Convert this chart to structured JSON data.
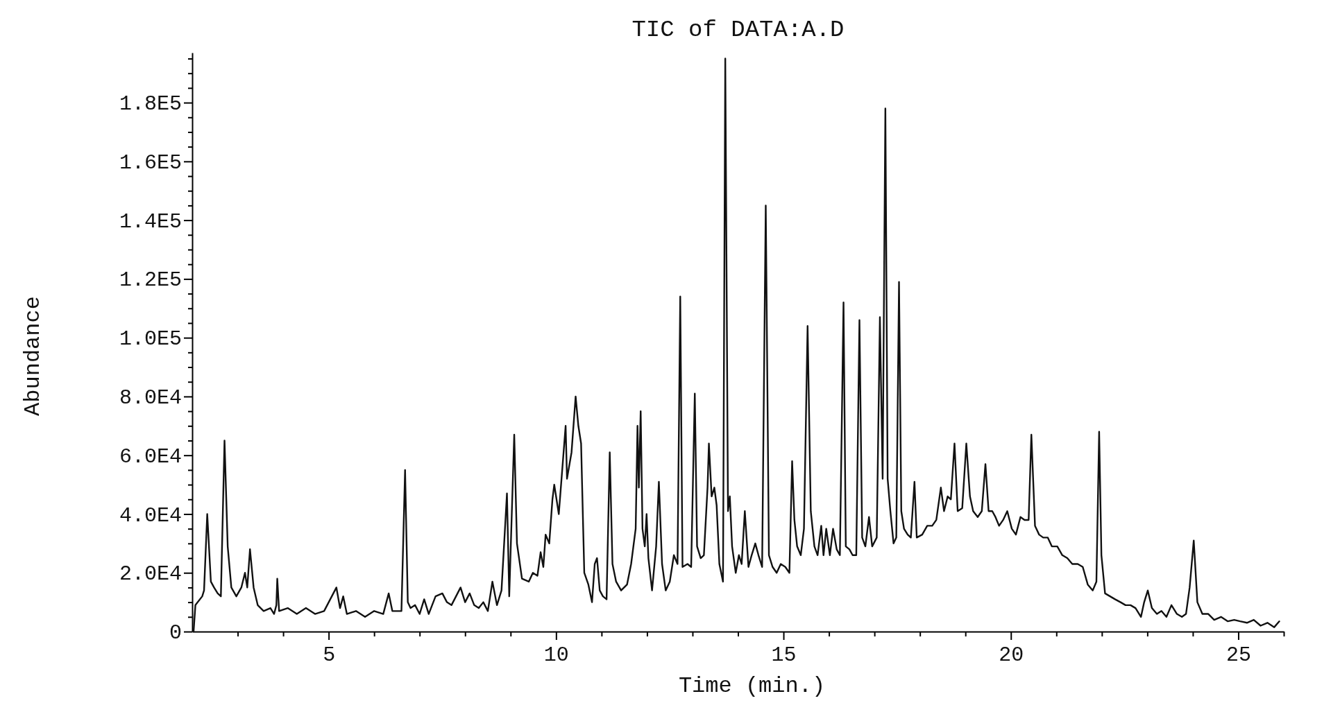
{
  "chart_data": {
    "type": "line",
    "title": "TIC of DATA:A.D",
    "xlabel": "Time (min.)",
    "ylabel": "Abundance",
    "color": "#111111",
    "xlim": [
      2,
      26
    ],
    "ylim": [
      0,
      197000
    ],
    "xticks": [
      {
        "value": 3,
        "label": null
      },
      {
        "value": 4,
        "label": null
      },
      5,
      {
        "value": 6,
        "label": null
      },
      {
        "value": 7,
        "label": null
      },
      {
        "value": 8,
        "label": null
      },
      {
        "value": 9,
        "label": null
      },
      10,
      {
        "value": 11,
        "label": null
      },
      {
        "value": 12,
        "label": null
      },
      {
        "value": 13,
        "label": null
      },
      {
        "value": 14,
        "label": null
      },
      15,
      {
        "value": 16,
        "label": null
      },
      {
        "value": 17,
        "label": null
      },
      {
        "value": 18,
        "label": null
      },
      {
        "value": 19,
        "label": null
      },
      20,
      {
        "value": 21,
        "label": null
      },
      {
        "value": 22,
        "label": null
      },
      {
        "value": 23,
        "label": null
      },
      {
        "value": 24,
        "label": null
      },
      25,
      {
        "value": 26,
        "label": null
      }
    ],
    "yticks": [
      0,
      {
        "value": 5000,
        "label": null
      },
      {
        "value": 10000,
        "label": null
      },
      {
        "value": 15000,
        "label": null
      },
      {
        "value": 20000,
        "label": "2.0E4"
      },
      {
        "value": 25000,
        "label": null
      },
      {
        "value": 30000,
        "label": null
      },
      {
        "value": 35000,
        "label": null
      },
      {
        "value": 40000,
        "label": "4.0E4"
      },
      {
        "value": 45000,
        "label": null
      },
      {
        "value": 50000,
        "label": null
      },
      {
        "value": 55000,
        "label": null
      },
      {
        "value": 60000,
        "label": "6.0E4"
      },
      {
        "value": 65000,
        "label": null
      },
      {
        "value": 70000,
        "label": null
      },
      {
        "value": 75000,
        "label": null
      },
      {
        "value": 80000,
        "label": "8.0E4"
      },
      {
        "value": 85000,
        "label": null
      },
      {
        "value": 90000,
        "label": null
      },
      {
        "value": 95000,
        "label": null
      },
      {
        "value": 100000,
        "label": "1.0E5"
      },
      {
        "value": 105000,
        "label": null
      },
      {
        "value": 110000,
        "label": null
      },
      {
        "value": 115000,
        "label": null
      },
      {
        "value": 120000,
        "label": "1.2E5"
      },
      {
        "value": 125000,
        "label": null
      },
      {
        "value": 130000,
        "label": null
      },
      {
        "value": 135000,
        "label": null
      },
      {
        "value": 140000,
        "label": "1.4E5"
      },
      {
        "value": 145000,
        "label": null
      },
      {
        "value": 150000,
        "label": null
      },
      {
        "value": 155000,
        "label": null
      },
      {
        "value": 160000,
        "label": "1.6E5"
      },
      {
        "value": 165000,
        "label": null
      },
      {
        "value": 170000,
        "label": null
      },
      {
        "value": 175000,
        "label": null
      },
      {
        "value": 180000,
        "label": "1.8E5"
      },
      {
        "value": 185000,
        "label": null
      },
      {
        "value": 190000,
        "label": null
      },
      {
        "value": 195000,
        "label": null
      }
    ],
    "x": [
      2.03,
      2.07,
      2.22,
      2.26,
      2.33,
      2.41,
      2.48,
      2.56,
      2.63,
      2.71,
      2.78,
      2.86,
      2.97,
      3.08,
      3.16,
      3.21,
      3.27,
      3.35,
      3.44,
      3.57,
      3.72,
      3.8,
      3.85,
      3.87,
      3.91,
      4.1,
      4.3,
      4.5,
      4.7,
      4.9,
      5.17,
      5.25,
      5.32,
      5.4,
      5.6,
      5.8,
      6.0,
      6.2,
      6.32,
      6.4,
      6.6,
      6.68,
      6.74,
      6.8,
      6.9,
      7.0,
      7.1,
      7.2,
      7.35,
      7.5,
      7.6,
      7.7,
      7.8,
      7.9,
      8.0,
      8.1,
      8.2,
      8.3,
      8.4,
      8.5,
      8.6,
      8.7,
      8.8,
      8.92,
      8.97,
      9.08,
      9.14,
      9.25,
      9.4,
      9.49,
      9.59,
      9.66,
      9.72,
      9.77,
      9.85,
      9.92,
      9.96,
      10.06,
      10.21,
      10.24,
      10.34,
      10.43,
      10.49,
      10.55,
      10.62,
      10.71,
      10.79,
      10.85,
      10.9,
      10.96,
      11.03,
      11.11,
      11.18,
      11.24,
      11.32,
      11.43,
      11.56,
      11.65,
      11.75,
      11.79,
      11.82,
      11.86,
      11.9,
      11.95,
      11.99,
      12.03,
      12.11,
      12.2,
      12.26,
      12.33,
      12.41,
      12.5,
      12.59,
      12.67,
      12.73,
      12.78,
      12.89,
      12.97,
      13.05,
      13.1,
      13.18,
      13.25,
      13.33,
      13.36,
      13.42,
      13.48,
      13.53,
      13.59,
      13.67,
      13.72,
      13.78,
      13.82,
      13.87,
      13.95,
      14.02,
      14.08,
      14.15,
      14.23,
      14.3,
      14.38,
      14.45,
      14.53,
      14.61,
      14.68,
      14.76,
      14.85,
      14.94,
      15.04,
      15.13,
      15.19,
      15.24,
      15.3,
      15.38,
      15.45,
      15.53,
      15.6,
      15.68,
      15.75,
      15.83,
      15.88,
      15.94,
      16.02,
      16.09,
      16.17,
      16.24,
      16.32,
      16.37,
      16.45,
      16.52,
      16.6,
      16.67,
      16.73,
      16.8,
      16.88,
      16.95,
      17.05,
      17.12,
      17.18,
      17.24,
      17.29,
      17.35,
      17.42,
      17.48,
      17.54,
      17.59,
      17.65,
      17.73,
      17.8,
      17.88,
      17.93,
      18.05,
      18.16,
      18.27,
      18.36,
      18.46,
      18.53,
      18.61,
      18.68,
      18.76,
      18.83,
      18.93,
      19.02,
      19.1,
      19.17,
      19.27,
      19.36,
      19.44,
      19.51,
      19.59,
      19.66,
      19.74,
      19.83,
      19.92,
      20.02,
      20.11,
      20.21,
      20.3,
      20.39,
      20.45,
      20.53,
      20.62,
      20.71,
      20.81,
      20.9,
      21.02,
      21.13,
      21.24,
      21.35,
      21.47,
      21.58,
      21.69,
      21.8,
      21.88,
      21.94,
      21.99,
      22.07,
      22.18,
      22.29,
      22.41,
      22.52,
      22.63,
      22.74,
      22.86,
      22.93,
      23.01,
      23.1,
      23.21,
      23.31,
      23.42,
      23.53,
      23.65,
      23.76,
      23.85,
      23.93,
      24.02,
      24.1,
      24.21,
      24.34,
      24.47,
      24.62,
      24.77,
      24.91,
      25.04,
      25.19,
      25.34,
      25.49,
      25.64,
      25.79,
      25.9
    ],
    "values": [
      0,
      9000,
      12000,
      14000,
      40000,
      17000,
      15000,
      13000,
      12000,
      65000,
      29000,
      15000,
      12000,
      15000,
      20000,
      15000,
      28000,
      15000,
      9000,
      7000,
      8000,
      6000,
      9000,
      18000,
      7000,
      8000,
      6000,
      8000,
      6000,
      7000,
      15000,
      8000,
      12000,
      6000,
      7000,
      5000,
      7000,
      6000,
      13000,
      7000,
      7000,
      55000,
      10000,
      8000,
      9000,
      6000,
      11000,
      6000,
      12000,
      13000,
      10000,
      9000,
      12000,
      15000,
      10000,
      13000,
      9000,
      8000,
      10000,
      7000,
      17000,
      9000,
      14000,
      47000,
      12000,
      67000,
      30000,
      18000,
      17000,
      20000,
      19000,
      27000,
      22000,
      33000,
      30000,
      45000,
      50000,
      40000,
      70000,
      52000,
      61000,
      80000,
      70000,
      64000,
      20000,
      16000,
      10000,
      23000,
      25000,
      14000,
      12000,
      11000,
      61000,
      23000,
      17000,
      14000,
      16000,
      23000,
      35000,
      70000,
      49000,
      75000,
      35000,
      29000,
      40000,
      25000,
      14000,
      29000,
      51000,
      23000,
      14000,
      17000,
      26000,
      23000,
      114000,
      22000,
      23000,
      22000,
      81000,
      29000,
      25000,
      26000,
      49000,
      64000,
      46000,
      49000,
      43000,
      23000,
      17000,
      195000,
      41000,
      46000,
      29000,
      20000,
      26000,
      23000,
      41000,
      22000,
      26000,
      30000,
      26000,
      22000,
      145000,
      26000,
      22000,
      20000,
      23000,
      22000,
      20000,
      58000,
      38000,
      29000,
      26000,
      35000,
      104000,
      41000,
      29000,
      26000,
      36000,
      26000,
      35000,
      26000,
      35000,
      28000,
      26000,
      112000,
      29000,
      28000,
      26000,
      26000,
      106000,
      32000,
      29000,
      39000,
      29000,
      32000,
      107000,
      52000,
      178000,
      52000,
      41000,
      30000,
      32000,
      119000,
      41000,
      35000,
      33000,
      32000,
      51000,
      32000,
      33000,
      36000,
      36000,
      38000,
      49000,
      41000,
      46000,
      45000,
      64000,
      41000,
      42000,
      64000,
      46000,
      41000,
      39000,
      41000,
      57000,
      41000,
      41000,
      39000,
      36000,
      38000,
      41000,
      35000,
      33000,
      39000,
      38000,
      38000,
      67000,
      36000,
      33000,
      32000,
      32000,
      29000,
      29000,
      26000,
      25000,
      23000,
      23000,
      22000,
      16000,
      14000,
      17000,
      68000,
      26000,
      13000,
      12000,
      11000,
      10000,
      9000,
      9000,
      8000,
      5000,
      10000,
      14000,
      8000,
      6000,
      7000,
      5000,
      9000,
      6000,
      5000,
      6000,
      15000,
      31000,
      10000,
      6000,
      6000,
      4000,
      5000,
      3500,
      4000,
      3500,
      3000,
      4000,
      2000,
      3000,
      1500,
      3500
    ]
  }
}
